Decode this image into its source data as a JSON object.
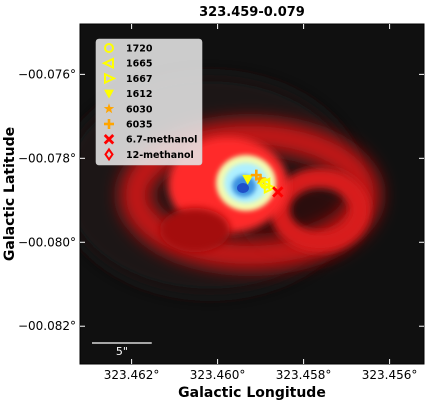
{
  "chart_data": {
    "type": "image",
    "title": "323.459-0.079",
    "xlabel": "Galactic Longitude",
    "ylabel": "Galactic Latitude",
    "xlim": [
      323.4632,
      323.4552
    ],
    "ylim": [
      -0.0829,
      -0.0748
    ],
    "x_ticks": [
      {
        "value": 323.462,
        "label": "323.462°"
      },
      {
        "value": 323.46,
        "label": "323.460°"
      },
      {
        "value": 323.458,
        "label": "323.458°"
      },
      {
        "value": 323.456,
        "label": "323.456°"
      }
    ],
    "y_ticks": [
      {
        "value": -0.076,
        "label": "−00.076°"
      },
      {
        "value": -0.078,
        "label": "−00.078°"
      },
      {
        "value": -0.08,
        "label": "−00.080°"
      },
      {
        "value": -0.082,
        "label": "−00.082°"
      }
    ],
    "scale_bar": {
      "label": "5\"",
      "length_deg": 0.00139
    },
    "legend": {
      "placement": "top-left",
      "entries": [
        {
          "label": "1720",
          "marker": "circle-open",
          "color": "#ffff00"
        },
        {
          "label": "1665",
          "marker": "triangle-left-open",
          "color": "#ffff00"
        },
        {
          "label": "1667",
          "marker": "triangle-right-open",
          "color": "#ffff00"
        },
        {
          "label": "1612",
          "marker": "triangle-down",
          "color": "#ffff00"
        },
        {
          "label": "6030",
          "marker": "star",
          "color": "#ffa500"
        },
        {
          "label": "6035",
          "marker": "plus",
          "color": "#ffa500"
        },
        {
          "label": "6.7-methanol",
          "marker": "x",
          "color": "#ff0000"
        },
        {
          "label": "12-methanol",
          "marker": "diamond-open",
          "color": "#ff0000"
        }
      ]
    },
    "points": [
      {
        "series": "1612",
        "x": 323.4593,
        "y": -0.0785
      },
      {
        "series": "6030",
        "x": 323.459,
        "y": -0.0785
      },
      {
        "series": "6035",
        "x": 323.4591,
        "y": -0.0784
      },
      {
        "series": "1665",
        "x": 323.4589,
        "y": -0.0786
      },
      {
        "series": "1667",
        "x": 323.4588,
        "y": -0.0787
      },
      {
        "series": "1720",
        "x": 323.4589,
        "y": -0.0786
      },
      {
        "series": "6.7-methanol",
        "x": 323.4586,
        "y": -0.0788
      }
    ],
    "background_color": "#000000",
    "grid": false
  }
}
